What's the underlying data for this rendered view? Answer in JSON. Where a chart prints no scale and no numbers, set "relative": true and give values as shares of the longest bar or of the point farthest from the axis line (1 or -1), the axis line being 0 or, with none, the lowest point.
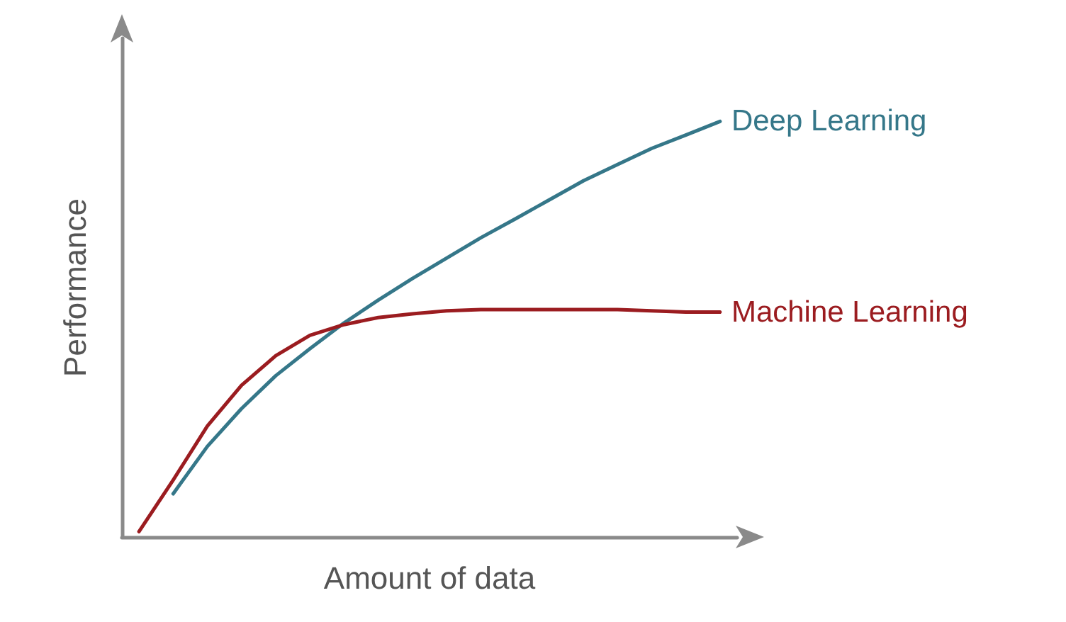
{
  "chart_data": {
    "type": "line",
    "xlabel": "Amount of data",
    "ylabel": "Performance",
    "relative": true,
    "legend": false,
    "grid": false,
    "marker": "none",
    "line_style": "solid",
    "categories": [
      null,
      null,
      null,
      null,
      null,
      null,
      null,
      null,
      null,
      null,
      null,
      null,
      null,
      null,
      null,
      null,
      null,
      null
    ],
    "series": [
      {
        "name": "Deep Learning",
        "color": "#357789",
        "values": [
          null,
          0.104,
          0.218,
          0.309,
          0.388,
          0.453,
          0.515,
          0.57,
          0.622,
          0.671,
          0.72,
          0.765,
          0.811,
          0.857,
          0.896,
          0.935,
          0.967,
          1
        ]
      },
      {
        "name": "Machine Learning",
        "color": "#9b1c20",
        "values": [
          0.013,
          0.137,
          0.267,
          0.365,
          0.436,
          0.485,
          0.511,
          0.528,
          0.537,
          0.544,
          0.547,
          0.547,
          0.547,
          0.547,
          0.547,
          0.544,
          0.541,
          0.541
        ]
      }
    ]
  }
}
